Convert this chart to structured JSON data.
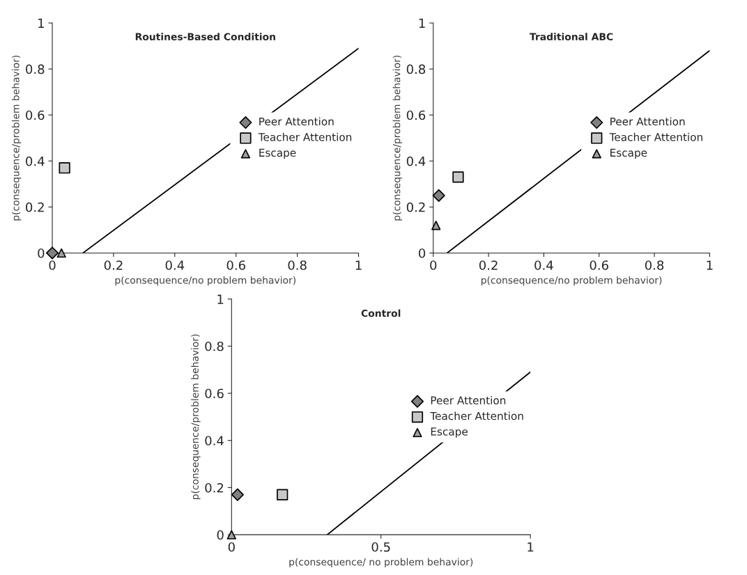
{
  "chart_data": [
    {
      "type": "scatter",
      "title": "Routines-Based Condition",
      "xlabel": "p(consequence/no problem behavior)",
      "ylabel": "p(consequence/problem behavior)",
      "xlim": [
        0,
        1
      ],
      "ylim": [
        0,
        1
      ],
      "xticks": [
        0,
        0.2,
        0.4,
        0.6,
        0.8,
        1
      ],
      "yticks": [
        0,
        0.2,
        0.4,
        0.6,
        0.8,
        1
      ],
      "legend": "right",
      "series": [
        {
          "name": "Peer Attention",
          "marker": "diamond",
          "color": "#808080",
          "x": [
            0
          ],
          "values": [
            0
          ]
        },
        {
          "name": "Teacher Attention",
          "marker": "square",
          "color": "#c8c8c8",
          "x": [
            0.04
          ],
          "values": [
            0.37
          ]
        },
        {
          "name": "Escape",
          "marker": "triangle",
          "color": "#a0a0a0",
          "x": [
            0.03
          ],
          "values": [
            0
          ]
        },
        {
          "type": "line",
          "marker": "none",
          "color": "#000000",
          "x": [
            0.1,
            1
          ],
          "values": [
            0,
            0.89
          ]
        }
      ]
    },
    {
      "type": "scatter",
      "title": "Traditional ABC",
      "xlabel": "p(consequence/no problem behavior)",
      "ylabel": "p(consequence/problem behavior)",
      "xlim": [
        0,
        1
      ],
      "ylim": [
        0,
        1
      ],
      "xticks": [
        0,
        0.2,
        0.4,
        0.6,
        0.8,
        1
      ],
      "yticks": [
        0,
        0.2,
        0.4,
        0.6,
        0.8,
        1
      ],
      "legend": "right",
      "series": [
        {
          "name": "Peer Attention",
          "marker": "diamond",
          "color": "#808080",
          "x": [
            0.02
          ],
          "values": [
            0.25
          ]
        },
        {
          "name": "Teacher Attention",
          "marker": "square",
          "color": "#c8c8c8",
          "x": [
            0.09
          ],
          "values": [
            0.33
          ]
        },
        {
          "name": "Escape",
          "marker": "triangle",
          "color": "#a0a0a0",
          "x": [
            0.01
          ],
          "values": [
            0.12
          ]
        },
        {
          "type": "line",
          "marker": "none",
          "color": "#000000",
          "x": [
            0.05,
            1
          ],
          "values": [
            0,
            0.88
          ]
        }
      ]
    },
    {
      "type": "scatter",
      "title": "Control",
      "xlabel": "p(consequence/ no problem behavior)",
      "ylabel": "p(consequence/problem behavior)",
      "xlim": [
        0,
        1
      ],
      "ylim": [
        0,
        1
      ],
      "xticks": [
        0,
        0.5,
        1
      ],
      "yticks": [
        0,
        0.2,
        0.4,
        0.6,
        0.8,
        1
      ],
      "legend": "right",
      "series": [
        {
          "name": "Peer Attention",
          "marker": "diamond",
          "color": "#808080",
          "x": [
            0.02
          ],
          "values": [
            0.17
          ]
        },
        {
          "name": "Teacher Attention",
          "marker": "square",
          "color": "#c8c8c8",
          "x": [
            0.17
          ],
          "values": [
            0.17
          ]
        },
        {
          "name": "Escape",
          "marker": "triangle",
          "color": "#a0a0a0",
          "x": [
            0
          ],
          "values": [
            0
          ]
        },
        {
          "type": "line",
          "marker": "none",
          "color": "#000000",
          "x": [
            0.32,
            1
          ],
          "values": [
            0,
            0.69
          ]
        }
      ]
    }
  ]
}
